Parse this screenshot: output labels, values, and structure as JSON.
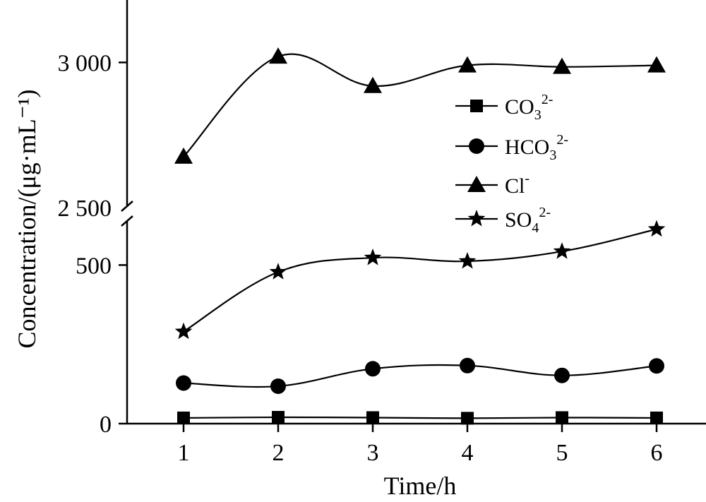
{
  "chart_data": {
    "type": "line",
    "title": "",
    "xlabel": "Time/h",
    "ylabel": "Concentration/(μg·mL⁻¹)",
    "categories": [
      "1",
      "2",
      "3",
      "4",
      "5",
      "6"
    ],
    "x": [
      1,
      2,
      3,
      4,
      5,
      6
    ],
    "y_axis": {
      "broken": true,
      "lower_segment": {
        "range": [
          0,
          650
        ],
        "ticks": [
          0,
          500
        ],
        "tick_labels": [
          "0",
          "500"
        ]
      },
      "upper_segment": {
        "range": [
          2500,
          3200
        ],
        "ticks": [
          2500,
          3000
        ],
        "tick_labels": [
          "2 500",
          "3 000"
        ]
      }
    },
    "grid": false,
    "legend_position": "right-upper",
    "series": [
      {
        "name": "CO₃²⁻",
        "legend_main": "CO",
        "legend_sub": "3",
        "legend_sup": "2-",
        "marker": "square",
        "values": [
          18,
          20,
          19,
          17,
          19,
          18
        ]
      },
      {
        "name": "HCO₃²⁻",
        "legend_main": "HCO",
        "legend_sub": "3",
        "legend_sup": "2-",
        "marker": "circle",
        "values": [
          128,
          118,
          173,
          183,
          152,
          182
        ]
      },
      {
        "name": "Cl⁻",
        "legend_main": "Cl",
        "legend_sub": "",
        "legend_sup": "-",
        "marker": "triangle",
        "values": [
          2680,
          3020,
          2920,
          2990,
          2985,
          2990
        ]
      },
      {
        "name": "SO₄²⁻",
        "legend_main": "SO",
        "legend_sub": "4",
        "legend_sup": "2-",
        "marker": "star",
        "values": [
          290,
          478,
          523,
          512,
          543,
          613
        ]
      }
    ],
    "line_color": "#000000"
  }
}
